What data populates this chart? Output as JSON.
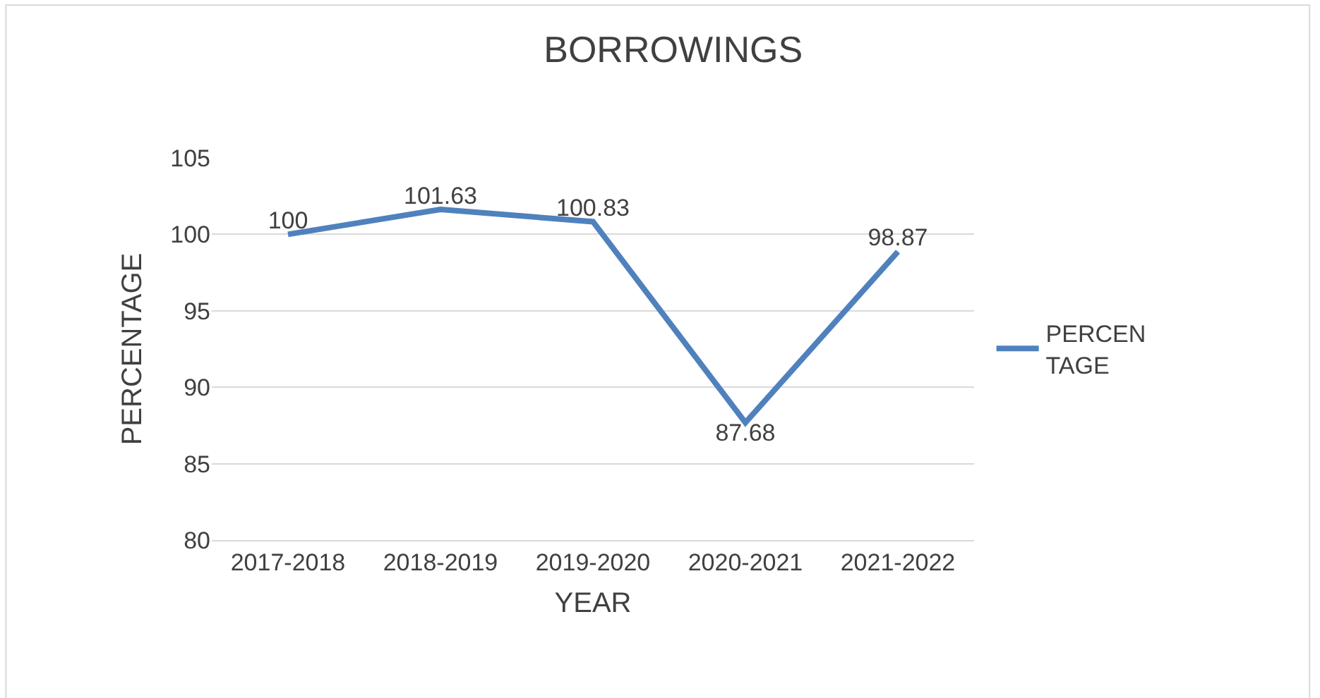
{
  "chart_data": {
    "type": "line",
    "title": "BORROWINGS",
    "xlabel": "YEAR",
    "ylabel": "PERCENTAGE",
    "categories": [
      "2017-2018",
      "2018-2019",
      "2019-2020",
      "2020-2021",
      "2021-2022"
    ],
    "series": [
      {
        "name": "PERCENTAGE",
        "color": "#4f81bd",
        "values": [
          100,
          101.63,
          100.83,
          87.68,
          98.87
        ]
      }
    ],
    "ylim": [
      80,
      105
    ],
    "yticks": [
      80,
      85,
      90,
      95,
      100,
      105
    ],
    "grid": "y",
    "legend": "right",
    "data_labels": true,
    "marker": "none",
    "line_style": "solid"
  }
}
